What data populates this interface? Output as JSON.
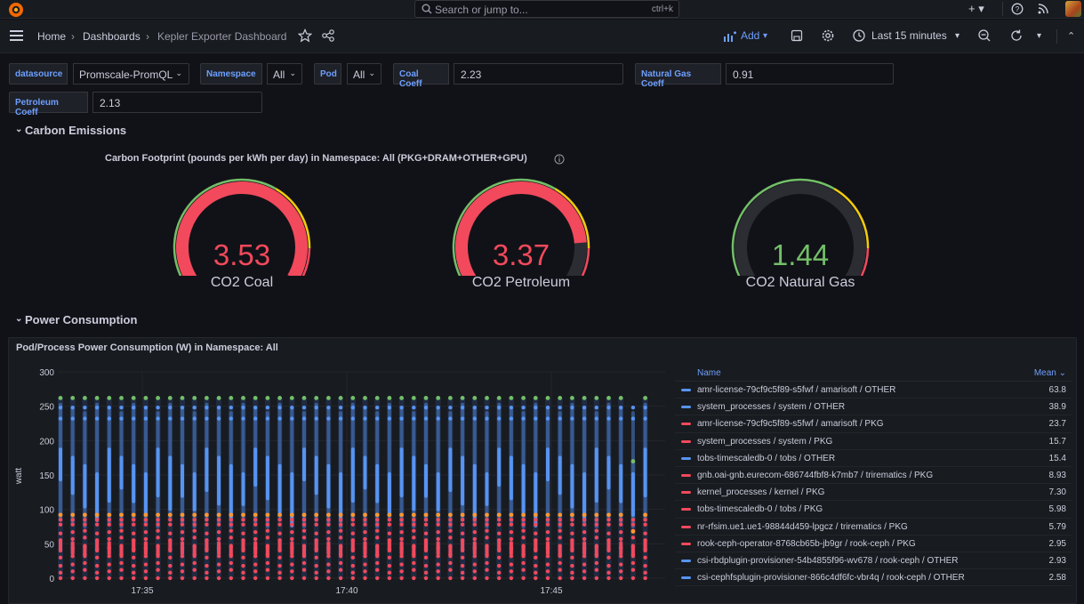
{
  "search": {
    "placeholder": "Search or jump to...",
    "shortcut": "ctrl+k"
  },
  "breadcrumb": {
    "home": "Home",
    "dashboards": "Dashboards",
    "current": "Kepler Exporter Dashboard"
  },
  "toolbar": {
    "add_label": "Add",
    "time_range": "Last 15 minutes"
  },
  "variables": {
    "datasource": {
      "label": "datasource",
      "value": "Promscale-PromQL"
    },
    "namespace": {
      "label": "Namespace",
      "value": "All"
    },
    "pod": {
      "label": "Pod",
      "value": "All"
    },
    "coal": {
      "label": "Coal Coeff",
      "value": "2.23"
    },
    "natural_gas": {
      "label": "Natural Gas Coeff",
      "value": "0.91"
    },
    "petroleum": {
      "label": "Petroleum Coeff",
      "value": "2.13"
    }
  },
  "rows": {
    "carbon": "Carbon Emissions",
    "power": "Power Consumption"
  },
  "carbon_panel": {
    "title": "Carbon Footprint (pounds per kWh per day) in Namespace: All (PKG+DRAM+OTHER+GPU)",
    "gauges": [
      {
        "value": "3.53",
        "label": "CO2 Coal",
        "fraction": 0.98,
        "color": "#f2495c"
      },
      {
        "value": "3.37",
        "label": "CO2 Petroleum",
        "fraction": 0.84,
        "color": "#f2495c"
      },
      {
        "value": "1.44",
        "label": "CO2 Natural Gas",
        "fraction": 0.0,
        "color": "#73bf69"
      }
    ]
  },
  "power_panel": {
    "title": "Pod/Process Power Consumption (W) in Namespace: All",
    "legend_header": {
      "name": "Name",
      "mean": "Mean"
    },
    "legend": [
      {
        "name": "amr-license-79cf9c5f89-s5fwf / amarisoft / OTHER",
        "mean": "63.8",
        "color": "#5794f2"
      },
      {
        "name": "system_processes / system / OTHER",
        "mean": "38.9",
        "color": "#5794f2"
      },
      {
        "name": "amr-license-79cf9c5f89-s5fwf / amarisoft / PKG",
        "mean": "23.7",
        "color": "#f2495c"
      },
      {
        "name": "system_processes / system / PKG",
        "mean": "15.7",
        "color": "#f2495c"
      },
      {
        "name": "tobs-timescaledb-0 / tobs / OTHER",
        "mean": "15.4",
        "color": "#5794f2"
      },
      {
        "name": "gnb.oai-gnb.eurecom-686744fbf8-k7mb7 / trirematics / PKG",
        "mean": "8.93",
        "color": "#f2495c"
      },
      {
        "name": "kernel_processes / kernel / PKG",
        "mean": "7.30",
        "color": "#f2495c"
      },
      {
        "name": "tobs-timescaledb-0 / tobs / PKG",
        "mean": "5.98",
        "color": "#f2495c"
      },
      {
        "name": "nr-rfsim.ue1.ue1-98844d459-lpgcz / trirematics / PKG",
        "mean": "5.79",
        "color": "#f2495c"
      },
      {
        "name": "rook-ceph-operator-8768cb65b-jb9gr / rook-ceph / PKG",
        "mean": "2.95",
        "color": "#f2495c"
      },
      {
        "name": "csi-rbdplugin-provisioner-54b4855f96-wv678 / rook-ceph / OTHER",
        "mean": "2.93",
        "color": "#5794f2"
      },
      {
        "name": "csi-cephfsplugin-provisioner-866c4df6fc-vbr4q / rook-ceph / OTHER",
        "mean": "2.58",
        "color": "#5794f2"
      }
    ]
  },
  "chart_data": {
    "type": "scatter",
    "ylabel": "watt",
    "ylim": [
      0,
      300
    ],
    "yticks": [
      "0",
      "50",
      "100",
      "150",
      "200",
      "250",
      "300"
    ],
    "xticks": [
      "17:35",
      "17:40",
      "17:45"
    ],
    "grid": true,
    "series": [
      {
        "name": "amr-license-79cf9c5f89-s5fwf / amarisoft / OTHER",
        "mean": 63.8
      },
      {
        "name": "system_processes / system / OTHER",
        "mean": 38.9
      },
      {
        "name": "amr-license-79cf9c5f89-s5fwf / amarisoft / PKG",
        "mean": 23.7
      },
      {
        "name": "system_processes / system / PKG",
        "mean": 15.7
      },
      {
        "name": "tobs-timescaledb-0 / tobs / OTHER",
        "mean": 15.4
      },
      {
        "name": "gnb.oai-gnb.eurecom-686744fbf8-k7mb7 / trirematics / PKG",
        "mean": 8.93
      },
      {
        "name": "kernel_processes / kernel / PKG",
        "mean": 7.3
      },
      {
        "name": "tobs-timescaledb-0 / tobs / PKG",
        "mean": 5.98
      },
      {
        "name": "nr-rfsim.ue1.ue1-98844d459-lpgcz / trirematics / PKG",
        "mean": 5.79
      },
      {
        "name": "rook-ceph-operator-8768cb65b-jb9gr / rook-ceph / PKG",
        "mean": 2.95
      },
      {
        "name": "csi-rbdplugin-provisioner-54b4855f96-wv678 / rook-ceph / OTHER",
        "mean": 2.93
      },
      {
        "name": "csi-cephfsplugin-provisioner-866c4df6fc-vbr4q / rook-ceph / OTHER",
        "mean": 2.58
      }
    ],
    "stacked_total_w": 262,
    "pkg_band_w": [
      0,
      90
    ],
    "other_band_w": [
      95,
      255
    ]
  }
}
